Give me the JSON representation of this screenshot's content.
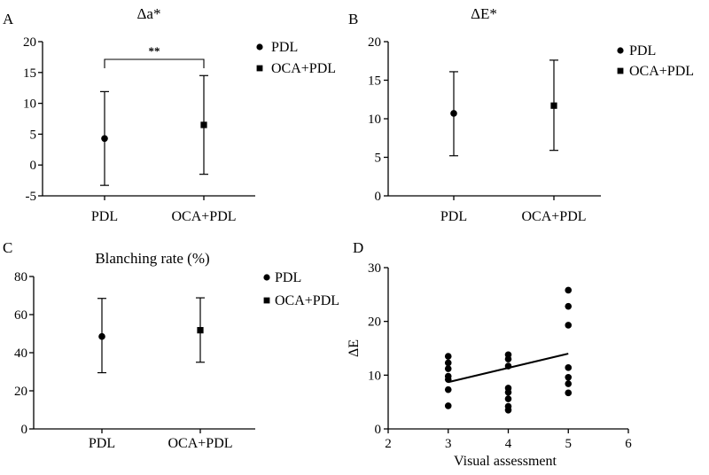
{
  "chart_data": [
    {
      "panel": "A",
      "type": "scatter",
      "title": "Δa*",
      "categories": [
        "PDL",
        "OCA+PDL"
      ],
      "ylim": [
        -5,
        20
      ],
      "yticks": [
        -5,
        0,
        5,
        10,
        15,
        20
      ],
      "series": [
        {
          "name": "PDL",
          "marker": "circle",
          "mean": [
            4.3,
            null
          ],
          "error_low": [
            -3.3,
            null
          ],
          "error_high": [
            11.9,
            null
          ]
        },
        {
          "name": "OCA+PDL",
          "marker": "square",
          "mean": [
            null,
            6.5
          ],
          "error_low": [
            null,
            -1.5
          ],
          "error_high": [
            null,
            14.5
          ]
        }
      ],
      "annotation": {
        "text": "**",
        "between": [
          "PDL",
          "OCA+PDL"
        ]
      },
      "legend": "top-right"
    },
    {
      "panel": "B",
      "type": "scatter",
      "title": "ΔE*",
      "categories": [
        "PDL",
        "OCA+PDL"
      ],
      "ylim": [
        0,
        20
      ],
      "yticks": [
        0,
        5,
        10,
        15,
        20
      ],
      "series": [
        {
          "name": "PDL",
          "marker": "circle",
          "mean": [
            10.7,
            null
          ],
          "error_low": [
            5.2,
            null
          ],
          "error_high": [
            16.1,
            null
          ]
        },
        {
          "name": "OCA+PDL",
          "marker": "square",
          "mean": [
            null,
            11.7
          ],
          "error_low": [
            null,
            5.9
          ],
          "error_high": [
            null,
            17.6
          ]
        }
      ],
      "legend": "top-right"
    },
    {
      "panel": "C",
      "type": "scatter",
      "title": "Blanching rate (%)",
      "categories": [
        "PDL",
        "OCA+PDL"
      ],
      "ylim": [
        0,
        80
      ],
      "yticks": [
        0,
        20,
        40,
        60,
        80
      ],
      "series": [
        {
          "name": "PDL",
          "marker": "circle",
          "mean": [
            48.5,
            null
          ],
          "error_low": [
            29.5,
            null
          ],
          "error_high": [
            68.5,
            null
          ]
        },
        {
          "name": "OCA+PDL",
          "marker": "square",
          "mean": [
            null,
            51.8
          ],
          "error_low": [
            null,
            35.0
          ],
          "error_high": [
            null,
            68.8
          ]
        }
      ],
      "legend": "top-right"
    },
    {
      "panel": "D",
      "type": "scatter",
      "xlabel": "Visual assessment",
      "ylabel": "ΔE",
      "xlim": [
        2,
        6
      ],
      "ylim": [
        0,
        30
      ],
      "xticks": [
        2,
        3,
        4,
        5,
        6
      ],
      "yticks": [
        0,
        10,
        20,
        30
      ],
      "points": [
        {
          "x": 3,
          "y": 13.5
        },
        {
          "x": 3,
          "y": 12.3
        },
        {
          "x": 3,
          "y": 11.2
        },
        {
          "x": 3,
          "y": 9.8
        },
        {
          "x": 3,
          "y": 9.2
        },
        {
          "x": 3,
          "y": 7.3
        },
        {
          "x": 3,
          "y": 4.3
        },
        {
          "x": 4,
          "y": 13.8
        },
        {
          "x": 4,
          "y": 13.0
        },
        {
          "x": 4,
          "y": 11.7
        },
        {
          "x": 4,
          "y": 7.6
        },
        {
          "x": 4,
          "y": 6.8
        },
        {
          "x": 4,
          "y": 5.6
        },
        {
          "x": 4,
          "y": 4.2
        },
        {
          "x": 4,
          "y": 3.5
        },
        {
          "x": 5,
          "y": 25.8
        },
        {
          "x": 5,
          "y": 22.8
        },
        {
          "x": 5,
          "y": 19.3
        },
        {
          "x": 5,
          "y": 11.4
        },
        {
          "x": 5,
          "y": 9.6
        },
        {
          "x": 5,
          "y": 8.4
        },
        {
          "x": 5,
          "y": 6.7
        }
      ],
      "fit_line": {
        "x": [
          3,
          5
        ],
        "y": [
          8.7,
          14.0
        ]
      }
    }
  ]
}
